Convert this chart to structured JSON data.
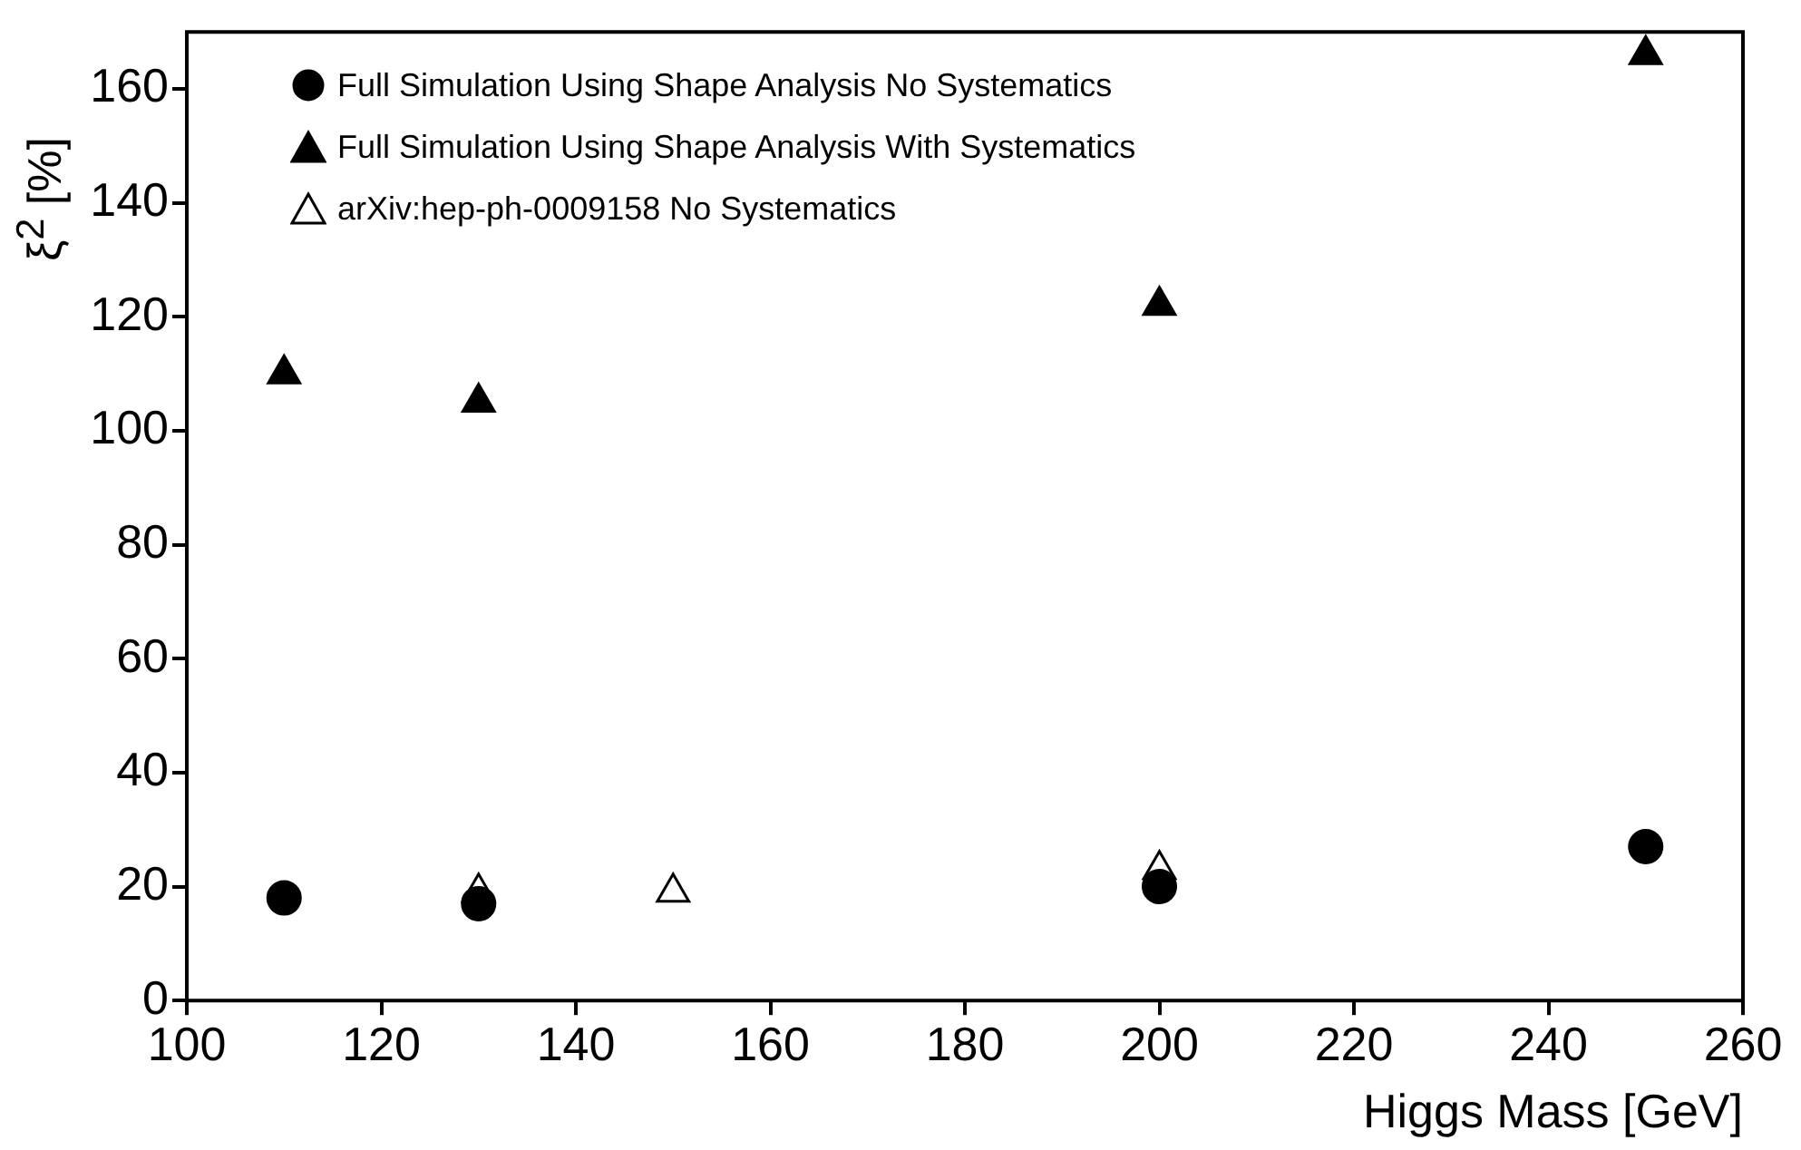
{
  "chart_data": {
    "type": "scatter",
    "xlabel": "Higgs Mass [GeV]",
    "ylabel": "ξ$^{2}$ [%]",
    "xlim": [
      100,
      260
    ],
    "xticks": [
      100,
      120,
      140,
      160,
      180,
      200,
      220,
      240,
      260
    ],
    "ylim": [
      0,
      170
    ],
    "yticks": [
      0,
      20,
      40,
      60,
      80,
      100,
      120,
      140,
      160
    ],
    "grid": false,
    "legend": "top left",
    "series": [
      {
        "name": "Full Simulation Using Shape Analysis No Systematics",
        "color": "#000000",
        "marker": "circle",
        "x": [
          110,
          130,
          200,
          250
        ],
        "values": [
          18,
          17,
          20,
          27
        ]
      },
      {
        "name": "Full Simulation Using Shape Analysis With Systematics",
        "color": "#000000",
        "marker": "triangle",
        "x": [
          110,
          130,
          200,
          250
        ],
        "values": [
          110,
          105,
          122,
          166
        ]
      },
      {
        "name": "arXiv:hep-ph-0009158 No Systematics",
        "color": "#ffffff",
        "marker": "triangle",
        "x": [
          130,
          150,
          200
        ],
        "values": [
          19,
          19,
          23
        ]
      }
    ]
  }
}
